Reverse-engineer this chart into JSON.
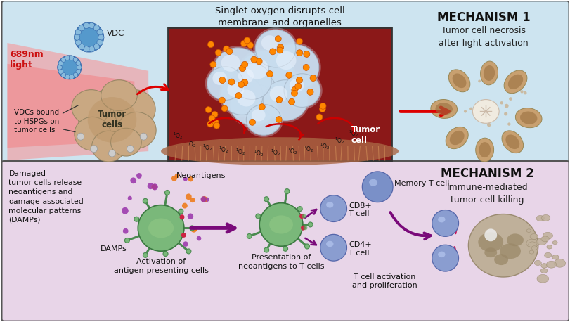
{
  "bg_top": "#cde4f0",
  "bg_bottom": "#e8d5e8",
  "border_color": "#555555",
  "title_top": "MECHANISM 1",
  "subtitle_top": "Tumor cell necrosis\nafter light activation",
  "title_bottom": "MECHANISM 2",
  "subtitle_bottom": "Immune-mediated\ntumor cell killing",
  "light_label": "689nm\nlight",
  "vdc_label": "VDC",
  "tumor_cells_label": "Tumor\ncells",
  "tumor_cell_label": "Tumor\ncell",
  "singlet_label": "Singlet oxygen disrupts cell\nmembrane and organelles",
  "vdc_bound_label": "VDCs bound\nto HSPGs on\ntumor cells",
  "damaged_label": "Damaged\ntumor cells release\nneoantigens and\ndamage-associated\nmolecular patterns\n(DAMPs)",
  "neoantigens_label": "Neoantigens",
  "damps_label": "DAMPs",
  "apc_label": "Activation of\nantigen-presenting cells",
  "present_label": "Presentation of\nneoantigens to T cells",
  "tcell_label": "T cell activation\nand proliferation",
  "cd8_label": "CD8+\nT cell",
  "cd4_label": "CD4+\nT cell",
  "memory_label": "Memory T cell",
  "arrow_red": "#dd0000",
  "arrow_purple": "#7a0a7a",
  "tumor_fill": "#c9a882",
  "tumor_dark": "#9a7050",
  "green_cell": "#7ab87a",
  "blue_tcell": "#8899cc",
  "purple_dot": "#9933aa",
  "orange_dot": "#ee7711",
  "micro_bg": "#8b1818",
  "micro_cell_color": "#b8cce0",
  "micro_border": "#333333"
}
